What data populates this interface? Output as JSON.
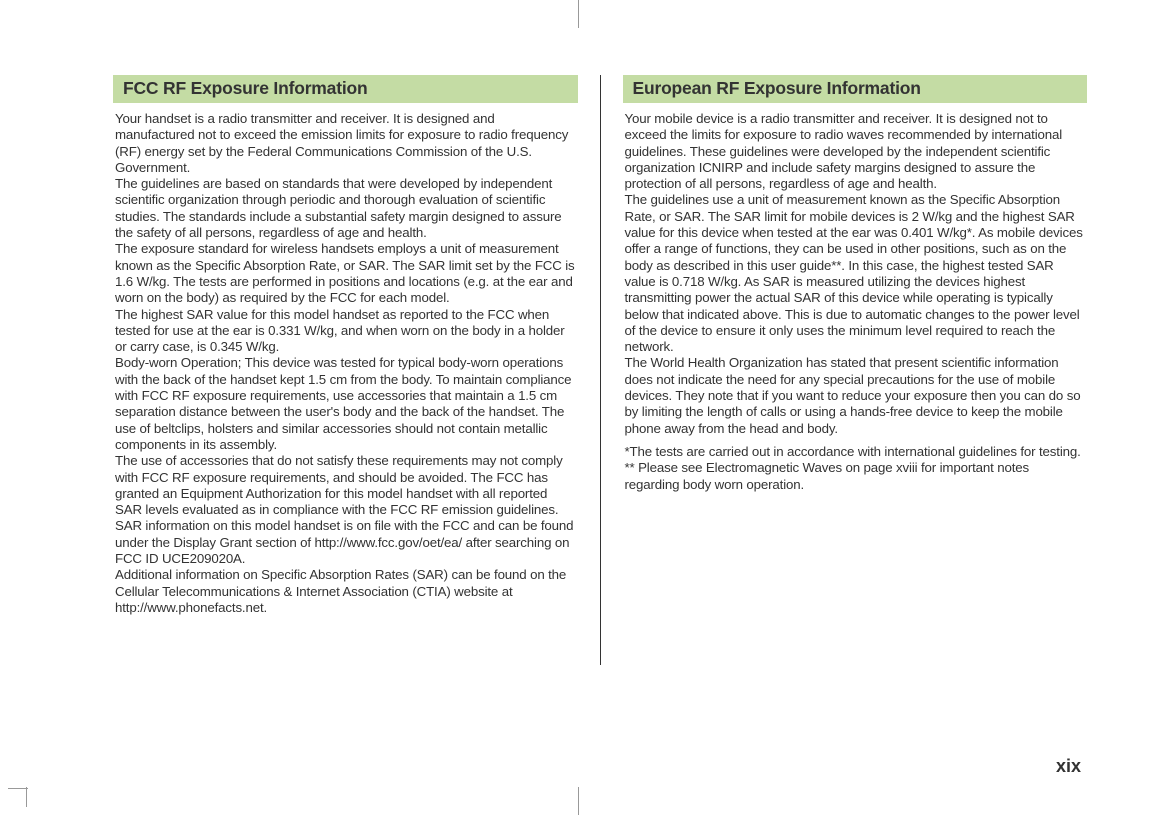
{
  "colors": {
    "heading_bg": "#c4dca4",
    "text": "#333333",
    "page_bg": "#ffffff",
    "crop_mark": "#999999"
  },
  "typography": {
    "heading_fontsize": 17.5,
    "heading_weight": 700,
    "body_fontsize": 13.3,
    "body_lineheight": 16.3,
    "pagenum_fontsize": 18
  },
  "left": {
    "heading": "FCC RF Exposure Information",
    "p1": "Your handset is a radio transmitter and receiver. It is designed and manufactured not to exceed the emission limits for exposure to radio frequency (RF) energy set by the Federal Communications Commission of the U.S. Government.",
    "p2": "The guidelines are based on standards that were developed by independent scientific organization through periodic and thorough evaluation of scientific studies. The standards include a substantial safety margin designed to assure the safety of all persons, regardless of age and health.",
    "p3": "The exposure standard for wireless handsets employs a unit of measurement known as the Specific Absorption Rate, or SAR. The SAR limit set by the FCC is 1.6 W/kg. The tests are performed in positions and locations (e.g. at the ear and worn on the body) as required by the FCC for each model.",
    "p4": "The highest SAR value for this model handset as reported to the FCC when tested for use at the ear is 0.331 W/kg, and when worn on the body in a holder or carry case, is 0.345 W/kg.",
    "p5": "Body-worn Operation; This device was tested for typical body-worn operations with the back of the handset kept 1.5 cm from the body. To maintain compliance with FCC RF exposure requirements, use accessories that maintain a 1.5 cm separation distance between the user's body and the back of the handset. The use of beltclips, holsters and similar accessories should not contain metallic components in its assembly.",
    "p6": "The use of accessories that do not satisfy these requirements may not comply with FCC RF exposure requirements, and should be avoided. The FCC has granted an Equipment Authorization for this model handset with all reported SAR levels evaluated as in compliance with the FCC RF emission guidelines. SAR information on this model handset is on file with the FCC and can be found under the Display Grant section of http://www.fcc.gov/oet/ea/ after searching on FCC ID UCE209020A.",
    "p7": "Additional information on Specific Absorption Rates (SAR) can be found on the Cellular Telecommunications & Internet Association (CTIA) website at http://www.phonefacts.net."
  },
  "right": {
    "heading": "European RF Exposure Information",
    "p1": "Your mobile device is a radio transmitter and receiver. It is designed not to exceed the limits for exposure to radio waves recommended by international guidelines. These guidelines were developed by the independent scientific organization ICNIRP and include safety margins designed to assure the protection of all persons, regardless of age and health.",
    "p2": "The guidelines use a unit of measurement known as the Specific Absorption Rate, or SAR. The SAR limit for mobile devices is 2 W/kg and the highest SAR value for this device when tested at the ear was 0.401 W/kg*. As mobile devices offer a range of functions, they can be used in other positions, such as on the body as described in this user guide**. In this case, the highest tested SAR value is 0.718 W/kg. As SAR is measured utilizing the devices highest transmitting power the actual SAR of this device while operating is typically below that indicated above. This is due to automatic changes to the power level of the device to ensure it only uses the minimum level required to reach the network.",
    "p3": "The World Health Organization has stated that present scientific information does not indicate the need for any special precautions for the use of mobile devices. They note that if you want to reduce your exposure then you can do so by limiting the length of calls or using a hands-free device to keep the mobile phone away from the head and body.",
    "p4": "*The tests are carried out in accordance with international guidelines for testing.",
    "p5": "** Please see Electromagnetic Waves on page xviii for important notes regarding body worn operation."
  },
  "page_number": "xix"
}
